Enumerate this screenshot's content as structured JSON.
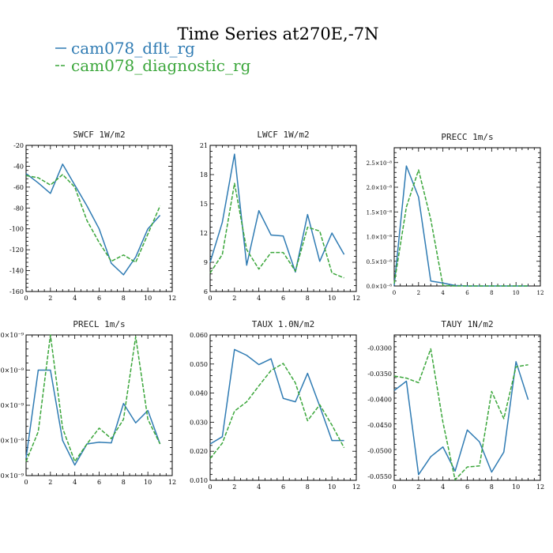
{
  "figure": {
    "title": "Time Series at270E,-7N",
    "legend": [
      {
        "label": "cam078_dflt_rg",
        "color": "#2f7bb3"
      },
      {
        "label": "cam078_diagnostic_rg",
        "color": "#3aa63a"
      }
    ]
  },
  "chart_data": [
    {
      "type": "line",
      "title": "SWCF   1W/m2",
      "x": [
        0,
        1,
        2,
        3,
        4,
        5,
        6,
        7,
        8,
        9,
        10,
        11
      ],
      "xlim": [
        0,
        12
      ],
      "xticks": [
        0,
        2,
        4,
        6,
        8,
        10,
        12
      ],
      "ylim": [
        -160,
        -20
      ],
      "yticks": [
        -160,
        -140,
        -120,
        -100,
        -80,
        -60,
        -40,
        -20
      ],
      "ytick_labels": [
        "-160",
        "-140",
        "-120",
        "-100",
        "-80",
        "-60",
        "-40",
        "-20"
      ],
      "series": [
        {
          "name": "cam078_dflt_rg",
          "values": [
            -47,
            -56,
            -66,
            -38,
            -58,
            -78,
            -100,
            -133,
            -144,
            -127,
            -100,
            -87
          ]
        },
        {
          "name": "cam078_diagnostic_rg",
          "values": [
            -49,
            -51,
            -58,
            -48,
            -60,
            -92,
            -113,
            -131,
            -125,
            -132,
            -105,
            -78
          ]
        }
      ]
    },
    {
      "type": "line",
      "title": "LWCF   1W/m2",
      "x": [
        0,
        1,
        2,
        3,
        4,
        5,
        6,
        7,
        8,
        9,
        10,
        11
      ],
      "xlim": [
        0,
        12
      ],
      "xticks": [
        0,
        2,
        4,
        6,
        8,
        10,
        12
      ],
      "ylim": [
        6,
        21
      ],
      "yticks": [
        6,
        9,
        12,
        15,
        18,
        21
      ],
      "ytick_labels": [
        "6",
        "9",
        "12",
        "15",
        "18",
        "21"
      ],
      "series": [
        {
          "name": "cam078_dflt_rg",
          "values": [
            9.0,
            13.1,
            20.1,
            8.7,
            14.3,
            11.8,
            11.7,
            8.0,
            13.9,
            9.1,
            12.0,
            9.8
          ]
        },
        {
          "name": "cam078_diagnostic_rg",
          "values": [
            7.9,
            9.8,
            17.1,
            10.3,
            8.3,
            10.0,
            10.0,
            8.1,
            12.6,
            12.2,
            7.9,
            7.4
          ]
        }
      ]
    },
    {
      "type": "line",
      "title": "PRECC   1m/s",
      "x": [
        0,
        1,
        2,
        3,
        4,
        5,
        6,
        7,
        8,
        9,
        10,
        11
      ],
      "xlim": [
        0,
        12
      ],
      "xticks": [
        0,
        2,
        4,
        6,
        8,
        10,
        12
      ],
      "ylim": [
        0,
        2.8e-08
      ],
      "yticks": [
        0,
        5e-09,
        1e-08,
        1.5e-08,
        2e-08,
        2.5e-08
      ],
      "ytick_labels": [
        "0.0×10⁻⁸",
        "0.5×10⁻⁸",
        "1.0×10⁻⁸",
        "1.5×10⁻⁸",
        "2.0×10⁻⁸",
        "2.5×10⁻⁸"
      ],
      "series": [
        {
          "name": "cam078_dflt_rg",
          "values": [
            1e-10,
            2.43e-08,
            1.8e-08,
            1e-09,
            6e-10,
            1e-10,
            0,
            0,
            0,
            0,
            0,
            0
          ]
        },
        {
          "name": "cam078_diagnostic_rg",
          "values": [
            5e-10,
            1.6e-08,
            2.35e-08,
            1.35e-08,
            1e-10,
            0,
            0,
            0,
            0,
            0,
            0,
            0
          ]
        }
      ]
    },
    {
      "type": "line",
      "title": "PRECL   1m/s",
      "x": [
        0,
        1,
        2,
        3,
        4,
        5,
        6,
        7,
        8,
        9,
        10,
        11
      ],
      "xlim": [
        0,
        12
      ],
      "xticks": [
        0,
        2,
        4,
        6,
        8,
        10,
        12
      ],
      "ylim": [
        0,
        4e-09
      ],
      "yticks": [
        0,
        1e-09,
        2e-09,
        3e-09,
        4e-09
      ],
      "ytick_labels": [
        ".0×10⁻⁹",
        ".0×10⁻⁹",
        ".0×10⁻⁹",
        ".0×10⁻⁹",
        ".0×10⁻⁹"
      ],
      "series": [
        {
          "name": "cam078_dflt_rg",
          "values": [
            5e-10,
            3e-09,
            3e-09,
            1e-09,
            3e-10,
            9e-10,
            9.5e-10,
            9.3e-10,
            2.05e-09,
            1.5e-09,
            1.85e-09,
            9e-10
          ]
        },
        {
          "name": "cam078_diagnostic_rg",
          "values": [
            4e-10,
            1.25e-09,
            4e-09,
            1.35e-09,
            4e-10,
            9e-10,
            1.35e-09,
            1.05e-09,
            1.6e-09,
            3.95e-09,
            1.6e-09,
            9e-10
          ]
        }
      ]
    },
    {
      "type": "line",
      "title": "TAUX   1.0N/m2",
      "x": [
        0,
        1,
        2,
        3,
        4,
        5,
        6,
        7,
        8,
        9,
        10,
        11
      ],
      "xlim": [
        0,
        12
      ],
      "xticks": [
        0,
        2,
        4,
        6,
        8,
        10,
        12
      ],
      "ylim": [
        0.01,
        0.06
      ],
      "yticks": [
        0.01,
        0.02,
        0.03,
        0.04,
        0.05,
        0.06
      ],
      "ytick_labels": [
        "0.010",
        "0.020",
        "0.030",
        "0.040",
        "0.050",
        "0.060"
      ],
      "series": [
        {
          "name": "cam078_dflt_rg",
          "values": [
            0.0225,
            0.025,
            0.055,
            0.053,
            0.0498,
            0.0518,
            0.0382,
            0.037,
            0.0468,
            0.0355,
            0.0237,
            0.0237
          ]
        },
        {
          "name": "cam078_diagnostic_rg",
          "values": [
            0.0175,
            0.0228,
            0.0338,
            0.037,
            0.0425,
            0.0478,
            0.0502,
            0.0435,
            0.0305,
            0.036,
            0.029,
            0.0212
          ]
        }
      ]
    },
    {
      "type": "line",
      "title": "TAUY   1N/m2",
      "x": [
        0,
        1,
        2,
        3,
        4,
        5,
        6,
        7,
        8,
        9,
        10,
        11
      ],
      "xlim": [
        0,
        12
      ],
      "xticks": [
        0,
        2,
        4,
        6,
        8,
        10,
        12
      ],
      "ylim": [
        -0.0558,
        -0.0275
      ],
      "yticks": [
        -0.055,
        -0.05,
        -0.045,
        -0.04,
        -0.035,
        -0.03
      ],
      "ytick_labels": [
        "-0.0550",
        "-0.0500",
        "-0.0450",
        "-0.0400",
        "-0.0350",
        "-0.0300"
      ],
      "series": [
        {
          "name": "cam078_dflt_rg",
          "values": [
            -0.0383,
            -0.0365,
            -0.0547,
            -0.0512,
            -0.0493,
            -0.054,
            -0.046,
            -0.0483,
            -0.0542,
            -0.0503,
            -0.0327,
            -0.0401
          ]
        },
        {
          "name": "cam078_diagnostic_rg",
          "values": [
            -0.0355,
            -0.0359,
            -0.0368,
            -0.0302,
            -0.0445,
            -0.0557,
            -0.0532,
            -0.053,
            -0.0385,
            -0.0438,
            -0.0337,
            -0.0333
          ]
        }
      ]
    }
  ]
}
